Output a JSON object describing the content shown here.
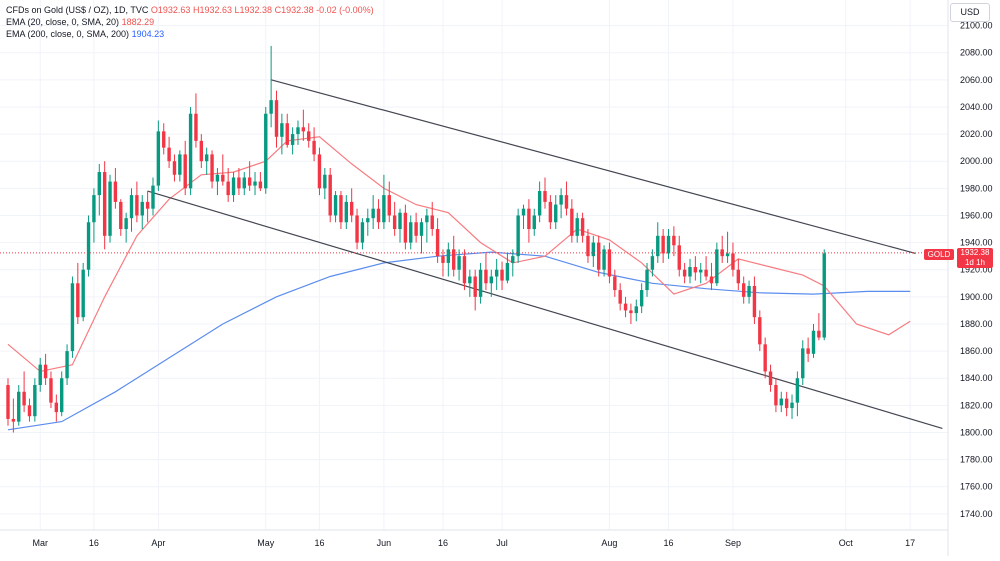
{
  "legend": {
    "symbol_line": "CFDs on Gold (US$ / OZ), 1D, TVC",
    "ohlc": {
      "o": "O1932.63",
      "h": "H1932.63",
      "l": "L1932.38",
      "c": "C1932.38",
      "chg": "-0.02 (-0.00%)"
    },
    "ema20_label": "EMA (20, close, 0, SMA, 20)",
    "ema20_value": "1882.29",
    "ema200_label": "EMA (200, close, 0, SMA, 200)",
    "ema200_value": "1904.23"
  },
  "currency_label": "USD",
  "price_tag": {
    "symbol": "GOLD",
    "price": "1932.38",
    "countdown": "1d 1h"
  },
  "colors": {
    "up": "#089981",
    "down": "#f23645",
    "ema20": "#f77c80",
    "ema200": "#5b8def",
    "channel": "#434651",
    "grid": "#f0f3fa",
    "price_line": "#f23645"
  },
  "chart_data": {
    "type": "candlestick",
    "y_axis": {
      "range": [
        1720,
        2110
      ],
      "ticks": [
        1740,
        1760,
        1780,
        1800,
        1820,
        1840,
        1860,
        1880,
        1900,
        1920,
        1940,
        1960,
        1980,
        2000,
        2020,
        2040,
        2060,
        2080,
        2100
      ]
    },
    "x_ticks": [
      {
        "label": "Mar",
        "i": 6
      },
      {
        "label": "16",
        "i": 16
      },
      {
        "label": "Apr",
        "i": 28
      },
      {
        "label": "May",
        "i": 48
      },
      {
        "label": "16",
        "i": 58
      },
      {
        "label": "Jun",
        "i": 70
      },
      {
        "label": "16",
        "i": 81
      },
      {
        "label": "Jul",
        "i": 92
      },
      {
        "label": "Aug",
        "i": 112
      },
      {
        "label": "16",
        "i": 123
      },
      {
        "label": "Sep",
        "i": 135
      },
      {
        "label": "Oct",
        "i": 156
      },
      {
        "label": "17",
        "i": 168
      }
    ],
    "candles": [
      [
        1835,
        1840,
        1805,
        1810
      ],
      [
        1810,
        1825,
        1800,
        1808
      ],
      [
        1808,
        1835,
        1805,
        1830
      ],
      [
        1830,
        1845,
        1815,
        1820
      ],
      [
        1820,
        1825,
        1808,
        1812
      ],
      [
        1812,
        1840,
        1808,
        1835
      ],
      [
        1835,
        1855,
        1830,
        1850
      ],
      [
        1850,
        1858,
        1835,
        1840
      ],
      [
        1840,
        1845,
        1818,
        1822
      ],
      [
        1822,
        1828,
        1808,
        1815
      ],
      [
        1815,
        1845,
        1812,
        1840
      ],
      [
        1840,
        1865,
        1835,
        1860
      ],
      [
        1860,
        1915,
        1855,
        1910
      ],
      [
        1910,
        1925,
        1880,
        1885
      ],
      [
        1885,
        1925,
        1882,
        1920
      ],
      [
        1920,
        1960,
        1915,
        1955
      ],
      [
        1955,
        1980,
        1940,
        1975
      ],
      [
        1975,
        1998,
        1960,
        1992
      ],
      [
        1992,
        2000,
        1935,
        1945
      ],
      [
        1945,
        1990,
        1940,
        1985
      ],
      [
        1985,
        1995,
        1965,
        1970
      ],
      [
        1970,
        1972,
        1945,
        1950
      ],
      [
        1950,
        1962,
        1940,
        1958
      ],
      [
        1958,
        1980,
        1948,
        1975
      ],
      [
        1975,
        1985,
        1955,
        1960
      ],
      [
        1960,
        1975,
        1950,
        1970
      ],
      [
        1970,
        1978,
        1955,
        1965
      ],
      [
        1965,
        1988,
        1960,
        1982
      ],
      [
        1982,
        2030,
        1978,
        2022
      ],
      [
        2022,
        2028,
        2005,
        2010
      ],
      [
        2010,
        2018,
        1995,
        2000
      ],
      [
        2000,
        2005,
        1985,
        1990
      ],
      [
        1990,
        2008,
        1985,
        2005
      ],
      [
        2005,
        2015,
        1975,
        1980
      ],
      [
        1980,
        2040,
        1975,
        2035
      ],
      [
        2035,
        2050,
        2010,
        2015
      ],
      [
        2015,
        2020,
        1995,
        2000
      ],
      [
        2000,
        2010,
        1990,
        2005
      ],
      [
        2005,
        2008,
        1980,
        1985
      ],
      [
        1985,
        1995,
        1975,
        1990
      ],
      [
        1990,
        2005,
        1982,
        1985
      ],
      [
        1985,
        1995,
        1970,
        1975
      ],
      [
        1975,
        1992,
        1970,
        1988
      ],
      [
        1988,
        1995,
        1975,
        1980
      ],
      [
        1980,
        1992,
        1975,
        1988
      ],
      [
        1988,
        2000,
        1978,
        1982
      ],
      [
        1982,
        1992,
        1975,
        1985
      ],
      [
        1985,
        1992,
        1978,
        1980
      ],
      [
        1980,
        2040,
        1976,
        2035
      ],
      [
        2035,
        2085,
        2025,
        2045
      ],
      [
        2045,
        2052,
        2010,
        2018
      ],
      [
        2018,
        2035,
        2005,
        2028
      ],
      [
        2028,
        2035,
        2010,
        2012
      ],
      [
        2012,
        2025,
        2005,
        2020
      ],
      [
        2020,
        2030,
        2012,
        2025
      ],
      [
        2025,
        2038,
        2015,
        2022
      ],
      [
        2022,
        2028,
        2010,
        2015
      ],
      [
        2015,
        2025,
        2000,
        2005
      ],
      [
        2005,
        2010,
        1975,
        1980
      ],
      [
        1980,
        1995,
        1972,
        1990
      ],
      [
        1990,
        1995,
        1955,
        1960
      ],
      [
        1960,
        1978,
        1955,
        1975
      ],
      [
        1975,
        1978,
        1950,
        1955
      ],
      [
        1955,
        1975,
        1950,
        1970
      ],
      [
        1970,
        1980,
        1955,
        1960
      ],
      [
        1960,
        1965,
        1935,
        1940
      ],
      [
        1940,
        1958,
        1935,
        1955
      ],
      [
        1955,
        1965,
        1945,
        1958
      ],
      [
        1958,
        1975,
        1950,
        1965
      ],
      [
        1965,
        1972,
        1950,
        1955
      ],
      [
        1955,
        1990,
        1950,
        1975
      ],
      [
        1975,
        1985,
        1955,
        1960
      ],
      [
        1960,
        1970,
        1945,
        1950
      ],
      [
        1950,
        1965,
        1940,
        1962
      ],
      [
        1962,
        1968,
        1935,
        1940
      ],
      [
        1940,
        1960,
        1935,
        1955
      ],
      [
        1955,
        1962,
        1940,
        1945
      ],
      [
        1945,
        1958,
        1932,
        1955
      ],
      [
        1955,
        1965,
        1940,
        1960
      ],
      [
        1960,
        1970,
        1945,
        1950
      ],
      [
        1950,
        1958,
        1925,
        1930
      ],
      [
        1930,
        1935,
        1915,
        1925
      ],
      [
        1925,
        1940,
        1915,
        1935
      ],
      [
        1935,
        1945,
        1915,
        1920
      ],
      [
        1920,
        1935,
        1912,
        1930
      ],
      [
        1930,
        1935,
        1905,
        1910
      ],
      [
        1910,
        1920,
        1900,
        1915
      ],
      [
        1915,
        1920,
        1890,
        1900
      ],
      [
        1900,
        1925,
        1895,
        1920
      ],
      [
        1920,
        1932,
        1905,
        1910
      ],
      [
        1910,
        1920,
        1900,
        1915
      ],
      [
        1915,
        1928,
        1905,
        1920
      ],
      [
        1920,
        1926,
        1905,
        1912
      ],
      [
        1912,
        1932,
        1910,
        1925
      ],
      [
        1925,
        1935,
        1915,
        1930
      ],
      [
        1930,
        1965,
        1925,
        1960
      ],
      [
        1960,
        1968,
        1950,
        1965
      ],
      [
        1965,
        1972,
        1940,
        1950
      ],
      [
        1950,
        1965,
        1945,
        1960
      ],
      [
        1960,
        1985,
        1955,
        1978
      ],
      [
        1978,
        1988,
        1965,
        1970
      ],
      [
        1970,
        1975,
        1950,
        1955
      ],
      [
        1955,
        1975,
        1950,
        1968
      ],
      [
        1968,
        1980,
        1958,
        1975
      ],
      [
        1975,
        1985,
        1960,
        1965
      ],
      [
        1965,
        1972,
        1940,
        1945
      ],
      [
        1945,
        1962,
        1940,
        1958
      ],
      [
        1958,
        1962,
        1940,
        1945
      ],
      [
        1945,
        1950,
        1925,
        1930
      ],
      [
        1930,
        1945,
        1922,
        1940
      ],
      [
        1940,
        1945,
        1915,
        1920
      ],
      [
        1920,
        1938,
        1915,
        1935
      ],
      [
        1935,
        1940,
        1910,
        1915
      ],
      [
        1915,
        1920,
        1900,
        1905
      ],
      [
        1905,
        1910,
        1890,
        1895
      ],
      [
        1895,
        1900,
        1885,
        1890
      ],
      [
        1890,
        1895,
        1880,
        1888
      ],
      [
        1888,
        1898,
        1882,
        1893
      ],
      [
        1893,
        1910,
        1888,
        1905
      ],
      [
        1905,
        1925,
        1900,
        1920
      ],
      [
        1920,
        1935,
        1915,
        1930
      ],
      [
        1930,
        1955,
        1925,
        1945
      ],
      [
        1945,
        1950,
        1925,
        1932
      ],
      [
        1932,
        1950,
        1928,
        1945
      ],
      [
        1945,
        1952,
        1930,
        1938
      ],
      [
        1938,
        1945,
        1915,
        1920
      ],
      [
        1920,
        1925,
        1910,
        1915
      ],
      [
        1915,
        1928,
        1910,
        1922
      ],
      [
        1922,
        1930,
        1912,
        1918
      ],
      [
        1918,
        1925,
        1910,
        1920
      ],
      [
        1920,
        1930,
        1912,
        1915
      ],
      [
        1915,
        1925,
        1905,
        1910
      ],
      [
        1910,
        1940,
        1908,
        1935
      ],
      [
        1935,
        1945,
        1925,
        1930
      ],
      [
        1930,
        1948,
        1925,
        1932
      ],
      [
        1932,
        1940,
        1915,
        1920
      ],
      [
        1920,
        1928,
        1905,
        1910
      ],
      [
        1910,
        1915,
        1895,
        1900
      ],
      [
        1900,
        1912,
        1895,
        1908
      ],
      [
        1908,
        1915,
        1880,
        1885
      ],
      [
        1885,
        1890,
        1860,
        1865
      ],
      [
        1865,
        1870,
        1840,
        1845
      ],
      [
        1845,
        1850,
        1830,
        1835
      ],
      [
        1835,
        1840,
        1815,
        1820
      ],
      [
        1820,
        1830,
        1815,
        1825
      ],
      [
        1825,
        1830,
        1812,
        1818
      ],
      [
        1818,
        1828,
        1810,
        1822
      ],
      [
        1822,
        1845,
        1812,
        1840
      ],
      [
        1840,
        1868,
        1835,
        1862
      ],
      [
        1862,
        1870,
        1852,
        1858
      ],
      [
        1858,
        1880,
        1855,
        1875
      ],
      [
        1875,
        1888,
        1868,
        1870
      ],
      [
        1870,
        1935,
        1868,
        1932
      ]
    ],
    "candle_index_offset": 0,
    "ema20": [
      [
        0,
        1865
      ],
      [
        6,
        1845
      ],
      [
        12,
        1850
      ],
      [
        18,
        1900
      ],
      [
        24,
        1945
      ],
      [
        30,
        1972
      ],
      [
        36,
        1990
      ],
      [
        42,
        1992
      ],
      [
        48,
        2000
      ],
      [
        52,
        2015
      ],
      [
        58,
        2018
      ],
      [
        64,
        1998
      ],
      [
        70,
        1980
      ],
      [
        76,
        1968
      ],
      [
        82,
        1962
      ],
      [
        88,
        1940
      ],
      [
        94,
        1925
      ],
      [
        100,
        1930
      ],
      [
        106,
        1950
      ],
      [
        112,
        1942
      ],
      [
        118,
        1925
      ],
      [
        124,
        1902
      ],
      [
        130,
        1910
      ],
      [
        136,
        1928
      ],
      [
        142,
        1922
      ],
      [
        148,
        1916
      ],
      [
        152,
        1908
      ],
      [
        158,
        1880
      ],
      [
        164,
        1872
      ],
      [
        168,
        1882
      ]
    ],
    "ema200": [
      [
        0,
        1802
      ],
      [
        10,
        1808
      ],
      [
        20,
        1830
      ],
      [
        30,
        1855
      ],
      [
        40,
        1880
      ],
      [
        50,
        1900
      ],
      [
        60,
        1915
      ],
      [
        70,
        1925
      ],
      [
        80,
        1930
      ],
      [
        90,
        1933
      ],
      [
        100,
        1930
      ],
      [
        110,
        1918
      ],
      [
        120,
        1910
      ],
      [
        130,
        1906
      ],
      [
        140,
        1903
      ],
      [
        150,
        1902
      ],
      [
        160,
        1904
      ],
      [
        168,
        1904
      ]
    ],
    "channel_upper": [
      [
        49,
        2060
      ],
      [
        169,
        1932
      ]
    ],
    "channel_lower": [
      [
        26,
        1978
      ],
      [
        174,
        1803
      ]
    ],
    "last_price": 1932.38
  }
}
